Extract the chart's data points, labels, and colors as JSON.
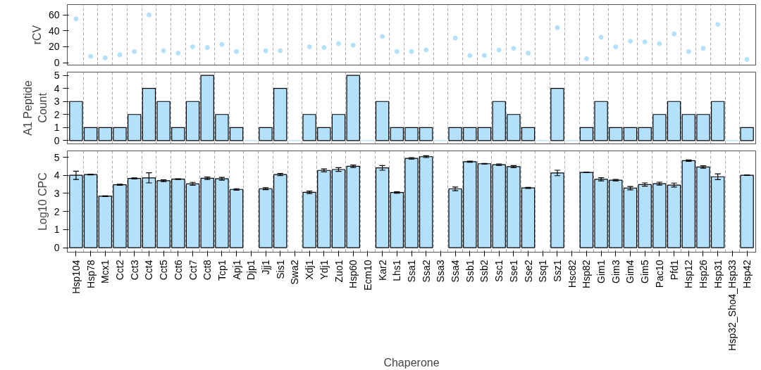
{
  "chart_data": [
    {
      "type": "scatter",
      "ylabel": "rCV",
      "categories": [
        "Hsp104",
        "Hsp78",
        "Mcx1",
        "Cct2",
        "Cct3",
        "Cct4",
        "Cct5",
        "Cct6",
        "Cct7",
        "Cct8",
        "Tcp1",
        "Apj1",
        "Djp1",
        "Jjj1",
        "Sis1",
        "Swa2",
        "Xdj1",
        "Ydj1",
        "Zuo1",
        "Hsp60",
        "Ecm10",
        "Kar2",
        "Lhs1",
        "Ssa1",
        "Ssa2",
        "Ssa3",
        "Ssa4",
        "Ssb1",
        "Ssb2",
        "Ssc1",
        "Sse1",
        "Sse2",
        "Ssq1",
        "Ssz1",
        "Hsc82",
        "Hsp82",
        "Gim1",
        "Gim3",
        "Gim4",
        "Gim5",
        "Pac10",
        "Pfd1",
        "Hsp12",
        "Hsp26",
        "Hsp31",
        "Hsp32_Sho4_Hsp33",
        "Hsp42"
      ],
      "values": [
        55,
        8,
        6,
        10,
        14,
        60,
        15,
        12,
        20,
        19,
        23,
        14,
        null,
        15,
        15,
        null,
        20,
        19,
        24,
        22,
        null,
        33,
        14,
        14,
        16,
        null,
        31,
        9,
        9,
        16,
        18,
        12,
        null,
        44,
        null,
        5,
        32,
        20,
        27,
        26,
        24,
        36,
        14,
        18,
        48,
        null,
        4
      ],
      "color": "#b3e0fa",
      "marker": "circle",
      "ylim": [
        -3,
        73
      ],
      "yticks": [
        0,
        20,
        40,
        60
      ],
      "grid": "x",
      "tick_labels": "y"
    },
    {
      "type": "bar",
      "ylabel": "A1 Peptide Count",
      "categories": [
        "Hsp104",
        "Hsp78",
        "Mcx1",
        "Cct2",
        "Cct3",
        "Cct4",
        "Cct5",
        "Cct6",
        "Cct7",
        "Cct8",
        "Tcp1",
        "Apj1",
        "Djp1",
        "Jjj1",
        "Sis1",
        "Swa2",
        "Xdj1",
        "Ydj1",
        "Zuo1",
        "Hsp60",
        "Ecm10",
        "Kar2",
        "Lhs1",
        "Ssa1",
        "Ssa2",
        "Ssa3",
        "Ssa4",
        "Ssb1",
        "Ssb2",
        "Ssc1",
        "Sse1",
        "Sse2",
        "Ssq1",
        "Ssz1",
        "Hsc82",
        "Hsp82",
        "Gim1",
        "Gim3",
        "Gim4",
        "Gim5",
        "Pac10",
        "Pfd1",
        "Hsp12",
        "Hsp26",
        "Hsp31",
        "Hsp32_Sho4_Hsp33",
        "Hsp42"
      ],
      "values": [
        3,
        1,
        1,
        1,
        2,
        4,
        3,
        1,
        3,
        5,
        2,
        1,
        0,
        1,
        4,
        0,
        2,
        1,
        2,
        5,
        0,
        3,
        1,
        1,
        1,
        0,
        1,
        1,
        1,
        3,
        2,
        1,
        0,
        4,
        0,
        1,
        3,
        1,
        1,
        1,
        2,
        3,
        2,
        2,
        3,
        0,
        1
      ],
      "color": "#b3e0fa",
      "ylim": [
        -0.25,
        5.25
      ],
      "yticks": [
        0,
        1,
        2,
        3,
        4,
        5
      ],
      "grid": "x",
      "tick_labels": "y"
    },
    {
      "type": "bar",
      "ylabel": "Log10 CPC",
      "xlabel": "Chaperone",
      "categories": [
        "Hsp104",
        "Hsp78",
        "Mcx1",
        "Cct2",
        "Cct3",
        "Cct4",
        "Cct5",
        "Cct6",
        "Cct7",
        "Cct8",
        "Tcp1",
        "Apj1",
        "Djp1",
        "Jjj1",
        "Sis1",
        "Swa2",
        "Xdj1",
        "Ydj1",
        "Zuo1",
        "Hsp60",
        "Ecm10",
        "Kar2",
        "Lhs1",
        "Ssa1",
        "Ssa2",
        "Ssa3",
        "Ssa4",
        "Ssb1",
        "Ssb2",
        "Ssc1",
        "Sse1",
        "Sse2",
        "Ssq1",
        "Ssz1",
        "Hsc82",
        "Hsp82",
        "Gim1",
        "Gim3",
        "Gim4",
        "Gim5",
        "Pac10",
        "Pfd1",
        "Hsp12",
        "Hsp26",
        "Hsp31",
        "Hsp32_Sho4_Hsp33",
        "Hsp42"
      ],
      "values": [
        4.0,
        4.04,
        2.85,
        3.48,
        3.83,
        3.86,
        3.7,
        3.79,
        3.53,
        3.84,
        3.81,
        3.22,
        null,
        3.26,
        4.04,
        null,
        3.06,
        4.27,
        4.32,
        4.5,
        null,
        4.41,
        3.05,
        4.94,
        5.03,
        null,
        3.25,
        4.75,
        4.64,
        4.59,
        4.48,
        3.3,
        null,
        4.13,
        null,
        4.16,
        3.78,
        3.73,
        3.29,
        3.49,
        3.54,
        3.46,
        4.81,
        4.46,
        3.92,
        null,
        4.0
      ],
      "errors": [
        0.23,
        0.02,
        0.02,
        0.03,
        0.03,
        0.28,
        0.05,
        0.02,
        0.08,
        0.07,
        0.08,
        0.04,
        null,
        0.05,
        0.06,
        null,
        0.07,
        0.08,
        0.1,
        0.07,
        null,
        0.13,
        0.04,
        0.04,
        0.05,
        null,
        0.1,
        0.03,
        0.02,
        0.04,
        0.06,
        0.03,
        null,
        0.15,
        null,
        0.01,
        0.09,
        0.04,
        0.09,
        0.09,
        0.08,
        0.11,
        0.04,
        0.07,
        0.16,
        null,
        0.01
      ],
      "color": "#b3e0fa",
      "ylim": [
        -0.25,
        5.35
      ],
      "yticks": [
        0,
        1,
        2,
        3,
        4,
        5
      ],
      "grid": "x"
    }
  ]
}
